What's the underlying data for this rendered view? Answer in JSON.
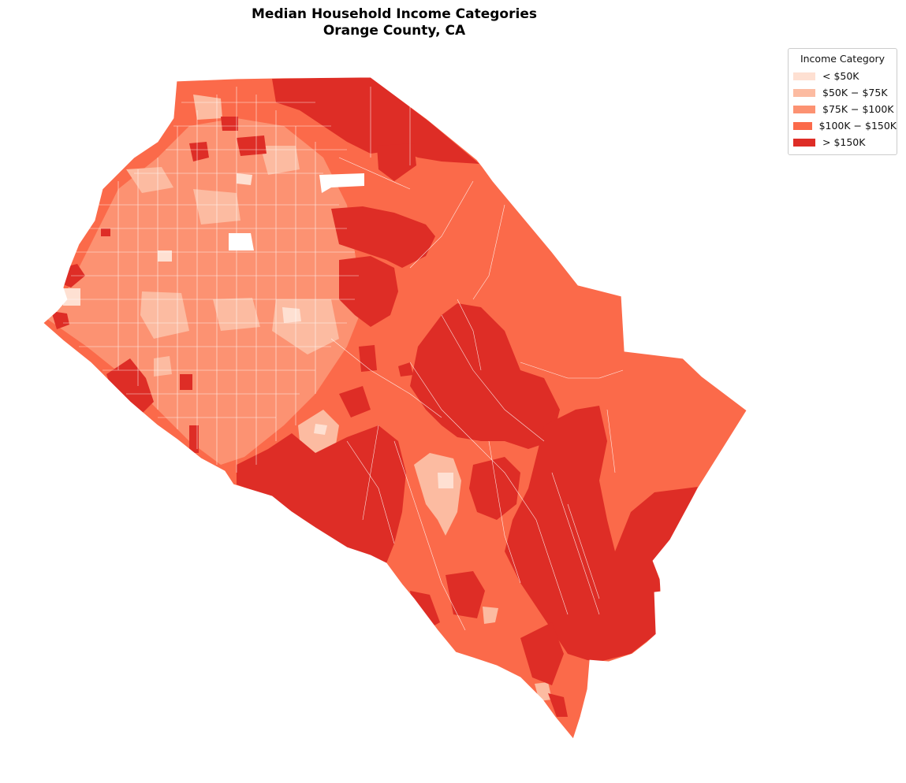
{
  "title": {
    "line1": "Median Household Income Categories",
    "line2": "Orange County, CA"
  },
  "legend": {
    "title": "Income Category",
    "items": [
      {
        "label": "< $50K",
        "color": "#fee0d2"
      },
      {
        "label": "$50K − $75K",
        "color": "#fcbba1"
      },
      {
        "label": "$75K − $100K",
        "color": "#fc9272"
      },
      {
        "label": "$100K − $150K",
        "color": "#fb6a4a"
      },
      {
        "label": "> $150K",
        "color": "#de2d26"
      }
    ]
  },
  "map": {
    "region": "Orange County, CA",
    "colors": {
      "lt50": "#fee0d2",
      "50to75": "#fcbba1",
      "75to100": "#fc9272",
      "100to150": "#fb6a4a",
      "gt150": "#de2d26",
      "boundary": "#ffffff"
    }
  }
}
